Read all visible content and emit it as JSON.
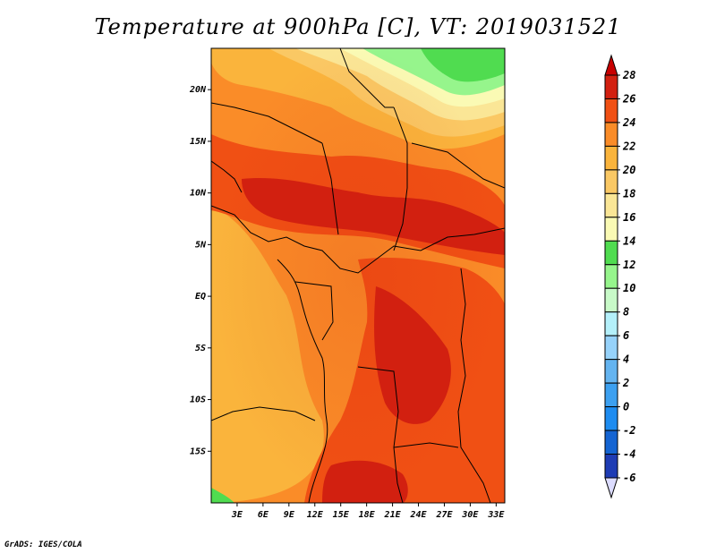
{
  "title": "Temperature at 900hPa [C], VT: 2019031521",
  "credit": "GrADS: IGES/COLA",
  "map": {
    "lon_range": [
      0,
      34
    ],
    "lat_range": [
      -20,
      24
    ],
    "lon_ticks": [
      {
        "value": 3,
        "label": "3E"
      },
      {
        "value": 6,
        "label": "6E"
      },
      {
        "value": 9,
        "label": "9E"
      },
      {
        "value": 12,
        "label": "12E"
      },
      {
        "value": 15,
        "label": "15E"
      },
      {
        "value": 18,
        "label": "18E"
      },
      {
        "value": 21,
        "label": "21E"
      },
      {
        "value": 24,
        "label": "24E"
      },
      {
        "value": 27,
        "label": "27E"
      },
      {
        "value": 30,
        "label": "30E"
      },
      {
        "value": 33,
        "label": "33E"
      }
    ],
    "lat_ticks": [
      {
        "value": 20,
        "label": "20N"
      },
      {
        "value": 15,
        "label": "15N"
      },
      {
        "value": 10,
        "label": "10N"
      },
      {
        "value": 5,
        "label": "5N"
      },
      {
        "value": 0,
        "label": "EQ"
      },
      {
        "value": -5,
        "label": "5S"
      },
      {
        "value": -10,
        "label": "10S"
      },
      {
        "value": -15,
        "label": "15S"
      }
    ]
  },
  "colorbar": {
    "levels": [
      "-6",
      "-4",
      "-2",
      "0",
      "2",
      "4",
      "6",
      "8",
      "10",
      "12",
      "14",
      "16",
      "18",
      "20",
      "22",
      "24",
      "26",
      "28"
    ],
    "colors": [
      "#0a0a78",
      "#1e3cb4",
      "#1464d2",
      "#1e8cf0",
      "#3ca0f0",
      "#64b4f0",
      "#96d2fa",
      "#b4f0fa",
      "#c8fac8",
      "#96f58c",
      "#50dc50",
      "#fafab4",
      "#fae696",
      "#fac864",
      "#fab43c",
      "#fa8c28",
      "#f05014",
      "#d22010",
      "#c80000"
    ],
    "under_color": "#dcdcff"
  }
}
